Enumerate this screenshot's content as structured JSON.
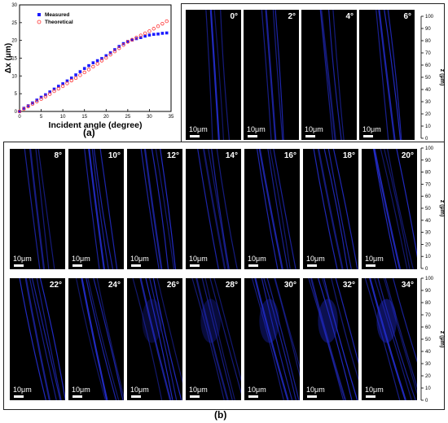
{
  "figure": {
    "panel_a_label": "(a)",
    "panel_b_label": "(b)"
  },
  "chart_data": {
    "type": "scatter",
    "xlabel": "Incident angle (degree)",
    "ylabel": "Δx (μm)",
    "xlim": [
      0,
      35
    ],
    "ylim": [
      0,
      30
    ],
    "xticks": [
      0,
      5,
      10,
      15,
      20,
      25,
      30,
      35
    ],
    "yticks": [
      0,
      5,
      10,
      15,
      20,
      25,
      30
    ],
    "grid": false,
    "legend": "top-left",
    "x": [
      0,
      1,
      2,
      3,
      4,
      5,
      6,
      7,
      8,
      9,
      10,
      11,
      12,
      13,
      14,
      15,
      16,
      17,
      18,
      19,
      20,
      21,
      22,
      23,
      24,
      25,
      26,
      27,
      28,
      29,
      30,
      31,
      32,
      33,
      34
    ],
    "series": [
      {
        "name": "Measured",
        "marker": "filled-square",
        "color": "#1a1aff",
        "values": [
          0.0,
          0.9,
          1.6,
          2.4,
          3.2,
          4.0,
          4.7,
          5.5,
          6.3,
          7.1,
          7.8,
          8.6,
          9.4,
          10.3,
          11.2,
          12.1,
          12.9,
          13.7,
          14.3,
          14.9,
          15.7,
          16.5,
          17.4,
          18.3,
          19.1,
          19.7,
          20.1,
          20.5,
          20.8,
          21.2,
          21.5,
          21.7,
          21.8,
          22.0,
          22.1
        ]
      },
      {
        "name": "Theoretical",
        "marker": "open-circle",
        "color": "#ff3333",
        "values": [
          0.0,
          0.7,
          1.4,
          2.1,
          2.8,
          3.5,
          4.2,
          4.9,
          5.7,
          6.4,
          7.1,
          7.9,
          8.7,
          9.4,
          10.2,
          11.0,
          11.8,
          12.6,
          13.4,
          14.3,
          15.1,
          16.0,
          16.9,
          17.8,
          18.7,
          19.6,
          20.2,
          20.8,
          21.4,
          22.0,
          22.6,
          23.3,
          24.0,
          24.7,
          25.4
        ]
      }
    ]
  },
  "tiles": {
    "row0": [
      {
        "angle": "0°",
        "scale": "10μm",
        "tilt": 0
      },
      {
        "angle": "2°",
        "scale": "10μm",
        "tilt": 2
      },
      {
        "angle": "4°",
        "scale": "10μm",
        "tilt": 4
      },
      {
        "angle": "6°",
        "scale": "10μm",
        "tilt": 6
      }
    ],
    "row1": [
      {
        "angle": "8°",
        "scale": "10μm",
        "tilt": 8
      },
      {
        "angle": "10°",
        "scale": "10μm",
        "tilt": 10
      },
      {
        "angle": "12°",
        "scale": "10μm",
        "tilt": 12
      },
      {
        "angle": "14°",
        "scale": "10μm",
        "tilt": 14
      },
      {
        "angle": "16°",
        "scale": "10μm",
        "tilt": 16
      },
      {
        "angle": "18°",
        "scale": "10μm",
        "tilt": 18
      },
      {
        "angle": "20°",
        "scale": "10μm",
        "tilt": 20
      }
    ],
    "row2": [
      {
        "angle": "22°",
        "scale": "10μm",
        "tilt": 22
      },
      {
        "angle": "24°",
        "scale": "10μm",
        "tilt": 24
      },
      {
        "angle": "26°",
        "scale": "10μm",
        "tilt": 26
      },
      {
        "angle": "28°",
        "scale": "10μm",
        "tilt": 28
      },
      {
        "angle": "30°",
        "scale": "10μm",
        "tilt": 30
      },
      {
        "angle": "32°",
        "scale": "10μm",
        "tilt": 32
      },
      {
        "angle": "34°",
        "scale": "10μm",
        "tilt": 34
      }
    ]
  },
  "z_axis": {
    "label": "z (μm)",
    "ticks": [
      0,
      10,
      20,
      30,
      40,
      50,
      60,
      70,
      80,
      90,
      100
    ]
  }
}
